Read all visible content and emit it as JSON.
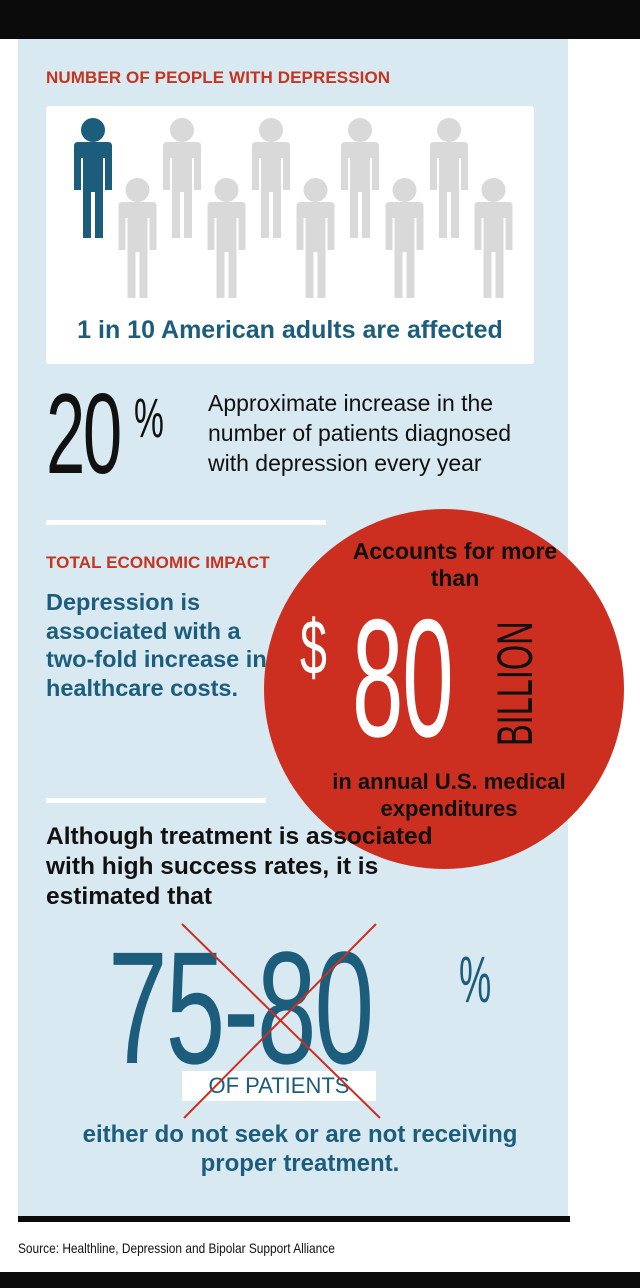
{
  "people_section": {
    "heading": "NUMBER OF PEOPLE WITH DEPRESSION",
    "figures_total": 10,
    "figures_highlighted": 1,
    "caption": "1 in 10 American adults are affected"
  },
  "increase_section": {
    "value": "20",
    "percent_sign": "%",
    "description": "Approximate increase in the number of patients diagnosed with depression every year"
  },
  "economic_section": {
    "heading": "TOTAL ECONOMIC IMPACT",
    "description": "Depression is associated with a two-fold increase in healthcare costs.",
    "circle": {
      "top_text": "Accounts for more than",
      "currency": "$",
      "amount": "80",
      "unit": "BILLION",
      "bottom_text": "in annual U.S. medical expenditures"
    }
  },
  "treatment_section": {
    "intro": "Although treatment is associated with high success rates, it is estimated that",
    "range": "75-80",
    "percent_sign": "%",
    "label": "OF PATIENTS",
    "conclusion": "either do not seek or are not receiving proper treatment."
  },
  "source": "Source: Healthline, Depression and Bipolar Support Alliance",
  "colors": {
    "accent_red": "#cc2f1f",
    "heading_red": "#c4341f",
    "teal": "#1c5d7b",
    "panel": "#d8e9f1",
    "figure_gray": "#d9d9d9"
  }
}
